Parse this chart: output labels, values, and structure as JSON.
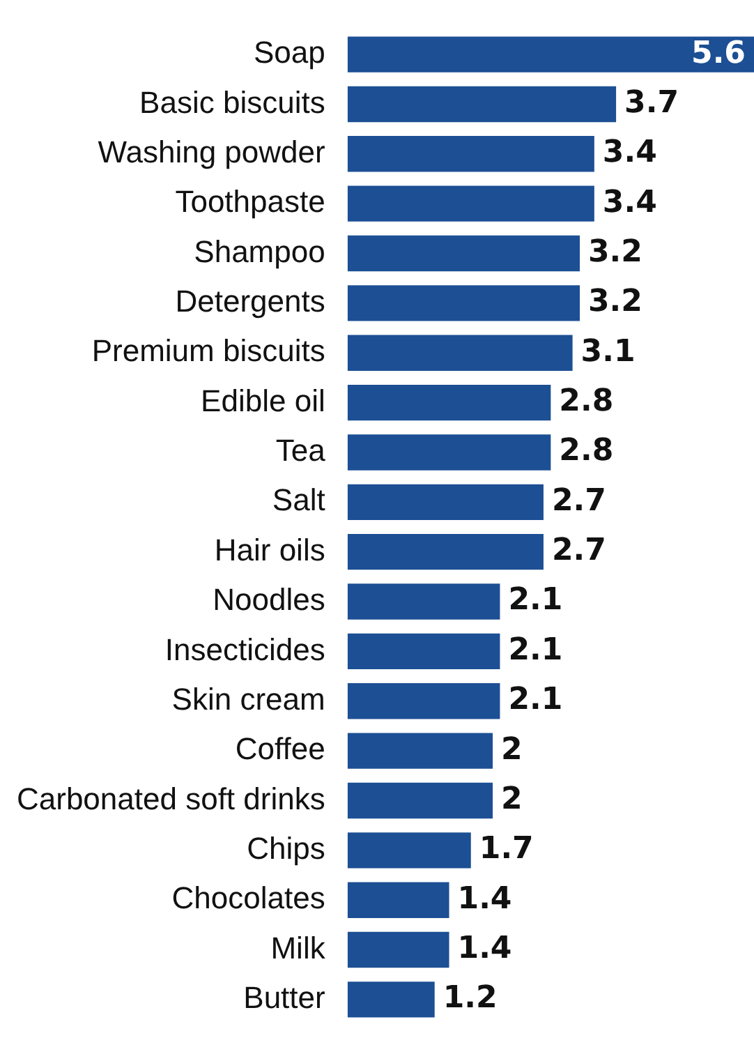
{
  "chart_data": {
    "type": "bar",
    "orientation": "horizontal",
    "data_labels": true,
    "color": "#1c4f94",
    "categories": [
      "Soap",
      "Basic biscuits",
      "Washing powder",
      "Toothpaste",
      "Shampoo",
      "Detergents",
      "Premium biscuits",
      "Edible oil",
      "Tea",
      "Salt",
      "Hair oils",
      "Noodles",
      "Insecticides",
      "Skin cream",
      "Coffee",
      "Carbonated soft drinks",
      "Chips",
      "Chocolates",
      "Milk",
      "Butter"
    ],
    "values": [
      5.6,
      3.7,
      3.4,
      3.4,
      3.2,
      3.2,
      3.1,
      2.8,
      2.8,
      2.7,
      2.7,
      2.1,
      2.1,
      2.1,
      2,
      2,
      1.7,
      1.4,
      1.4,
      1.2
    ]
  }
}
